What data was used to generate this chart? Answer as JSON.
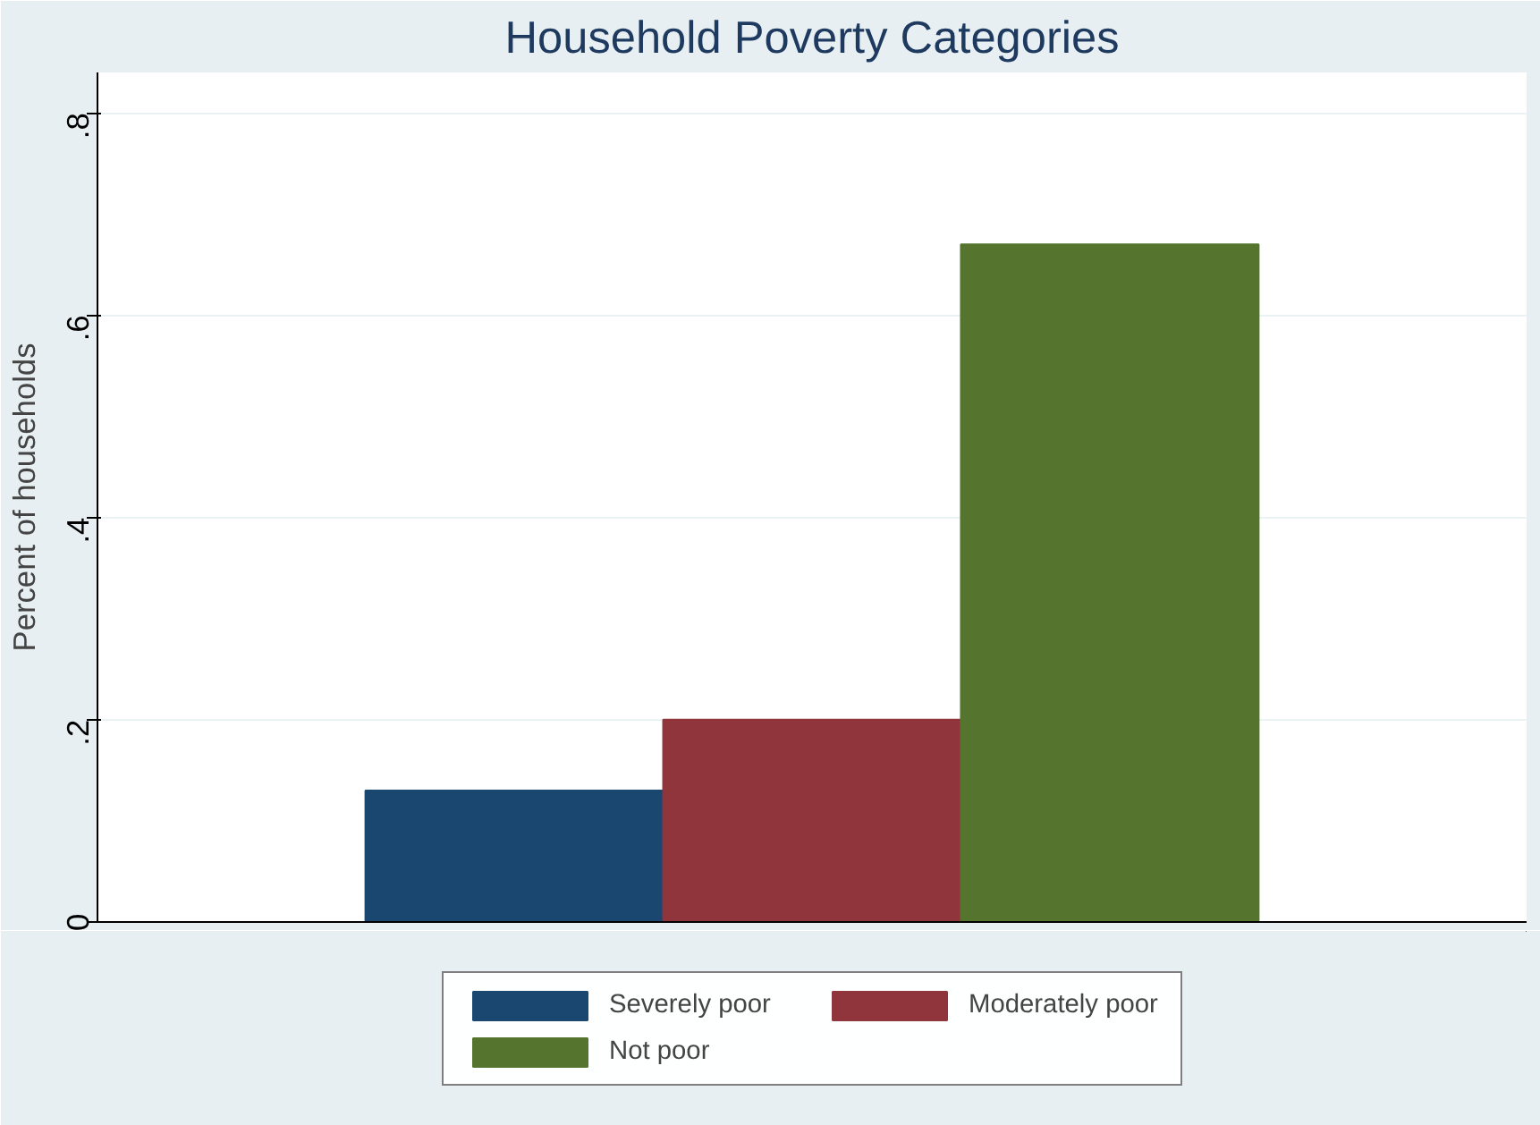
{
  "chart_data": {
    "type": "bar",
    "title": "Household Poverty Categories",
    "ylabel": "Percent of households",
    "categories": [
      null
    ],
    "series": [
      {
        "name": "Severely poor",
        "color": "#1a476f",
        "values": [
          0.13
        ]
      },
      {
        "name": "Moderately poor",
        "color": "#90353b",
        "values": [
          0.2
        ]
      },
      {
        "name": "Not poor",
        "color": "#55752f",
        "values": [
          0.67
        ]
      }
    ],
    "ylim": [
      0,
      0.84
    ],
    "yticks": [
      0,
      {
        "value": 0.2,
        "label": ".2"
      },
      {
        "value": 0.4,
        "label": ".4"
      },
      {
        "value": 0.6,
        "label": ".6"
      },
      {
        "value": 0.8,
        "label": ".8"
      }
    ],
    "grid": "y",
    "legend": "bottom"
  }
}
